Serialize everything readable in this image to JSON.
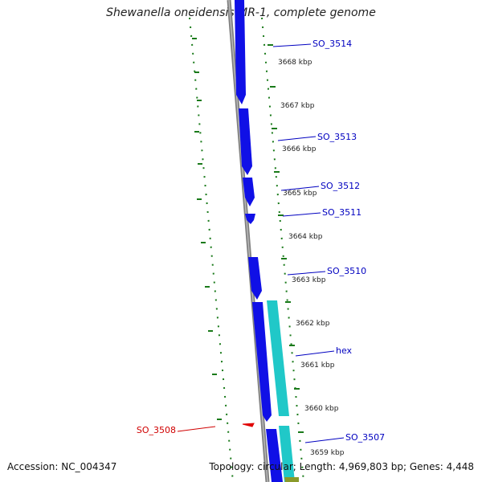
{
  "title": "Shewanella oneidensis MR-1, complete genome",
  "accession": "Accession: NC_004347",
  "summary": "Topology: circular; Length: 4,969,803 bp; Genes: 4,448",
  "colors": {
    "forward_gene": "#1010e6",
    "forward_gene_alt": "#20c8c8",
    "reverse_gene": "#e00000",
    "backbone": "#808080",
    "tick": "#1a7a1a",
    "label_forward": "#0000c0",
    "label_reverse": "#d00000",
    "olive": "#8a9a2a"
  },
  "ticks": [
    {
      "label": "3668 kbp"
    },
    {
      "label": "3667 kbp"
    },
    {
      "label": "3666 kbp"
    },
    {
      "label": "3665 kbp"
    },
    {
      "label": "3664 kbp"
    },
    {
      "label": "3663 kbp"
    },
    {
      "label": "3662 kbp"
    },
    {
      "label": "3661 kbp"
    },
    {
      "label": "3660 kbp"
    },
    {
      "label": "3659 kbp"
    }
  ],
  "genes": [
    {
      "label": "SO_3514",
      "strand": "forward"
    },
    {
      "label": "SO_3513",
      "strand": "forward"
    },
    {
      "label": "SO_3512",
      "strand": "forward"
    },
    {
      "label": "SO_3511",
      "strand": "forward"
    },
    {
      "label": "SO_3510",
      "strand": "forward"
    },
    {
      "label": "hex",
      "strand": "forward"
    },
    {
      "label": "SO_3507",
      "strand": "forward"
    },
    {
      "label": "SO_3508",
      "strand": "reverse"
    }
  ]
}
